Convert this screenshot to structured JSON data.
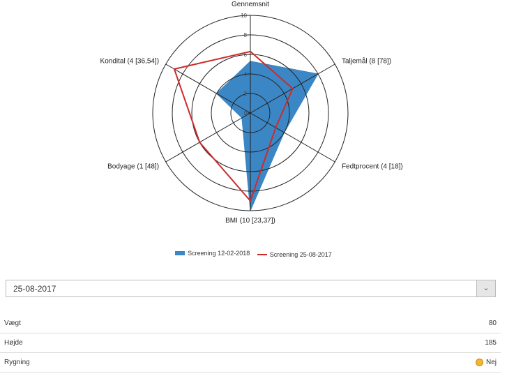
{
  "chart_data": {
    "type": "radar",
    "axes": [
      "Gennemsnit",
      "Taljemål (8 [78])",
      "Fedtprocent (4 [18])",
      "BMI (10 [23,37])",
      "Bodyage (1 [48])",
      "Kondital (4 [36,54])"
    ],
    "rlim": [
      0,
      10
    ],
    "ticks": [
      "0",
      "2",
      "4",
      "6",
      "8",
      "10"
    ],
    "grid": true,
    "legend": "bottom",
    "series": [
      {
        "name": "Screening 12-02-2018",
        "style": "area",
        "color": "#3b87c6",
        "values": [
          5.3,
          8,
          4,
          10,
          1,
          4
        ]
      },
      {
        "name": "Screening 25-08-2017",
        "style": "line",
        "color": "#cc2b2b",
        "values": [
          6.3,
          5,
          3,
          9,
          6,
          9
        ]
      }
    ]
  },
  "select": {
    "value": "25-08-2017",
    "icon": "chevron-down-icon"
  },
  "rows": [
    {
      "label": "Vægt",
      "value": "80"
    },
    {
      "label": "Højde",
      "value": "185"
    },
    {
      "label": "Rygning",
      "value": "Nej",
      "icon": "smiley-icon"
    }
  ]
}
